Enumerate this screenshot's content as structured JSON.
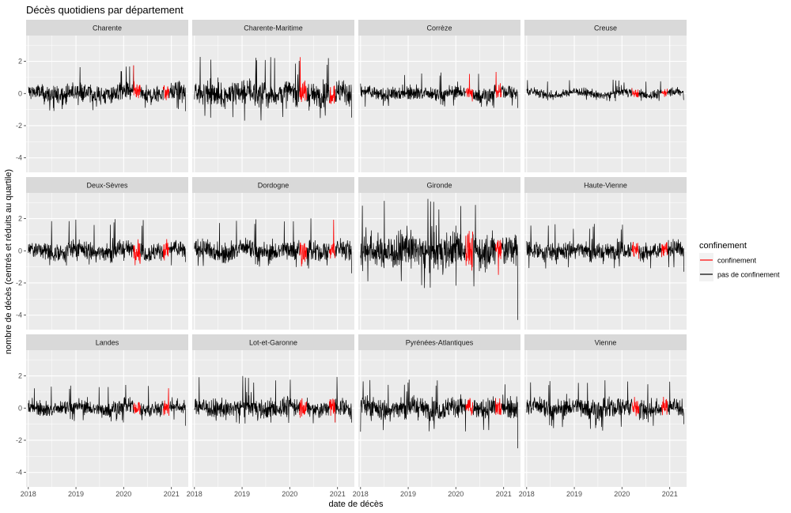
{
  "chart_data": {
    "type": "line",
    "title": "Décès quotidiens par département",
    "xlabel": "date de décès",
    "ylabel": "nombre de décès (centrés et réduits au quartile)",
    "x_ticks": [
      "2018",
      "2019",
      "2020",
      "2021"
    ],
    "x_range": [
      "2017-12-15",
      "2021-05-10"
    ],
    "y_ticks": [
      2,
      0,
      -2,
      -4
    ],
    "y_range": [
      -4.9,
      3.6
    ],
    "grid": true,
    "legend": {
      "title": "confinement",
      "placement": "right",
      "entries": [
        {
          "label": "confinement",
          "color": "#ff0000"
        },
        {
          "label": "pas de confinement",
          "color": "#000000"
        }
      ]
    },
    "lockdown_periods": [
      [
        "2020-03-17",
        "2020-05-11"
      ],
      [
        "2020-10-30",
        "2020-12-15"
      ]
    ],
    "data_start": "2018-01-01",
    "data_end": "2021-04-20",
    "panels": [
      {
        "name": "Charente",
        "spread_min": -1.1,
        "spread_max": 1.8,
        "end_value": -1.1
      },
      {
        "name": "Charente-Maritime",
        "spread_min": -1.7,
        "spread_max": 2.3,
        "end_value": -1.5
      },
      {
        "name": "Corrèze",
        "spread_min": -0.9,
        "spread_max": 1.4,
        "end_value": -0.9
      },
      {
        "name": "Creuse",
        "spread_min": -0.5,
        "spread_max": 0.9,
        "end_value": -0.4
      },
      {
        "name": "Deux-Sèvres",
        "spread_min": -1.0,
        "spread_max": 2.0,
        "end_value": -0.7
      },
      {
        "name": "Dordogne",
        "spread_min": -1.1,
        "spread_max": 2.1,
        "end_value": -1.4
      },
      {
        "name": "Gironde",
        "spread_min": -2.4,
        "spread_max": 3.4,
        "end_value": -4.3
      },
      {
        "name": "Haute-Vienne",
        "spread_min": -1.2,
        "spread_max": 1.7,
        "end_value": -1.3
      },
      {
        "name": "Landes",
        "spread_min": -0.9,
        "spread_max": 1.5,
        "end_value": -1.1
      },
      {
        "name": "Lot-et-Garonne",
        "spread_min": -1.0,
        "spread_max": 2.1,
        "end_value": -0.9
      },
      {
        "name": "Pyrénées-Atlantiques",
        "spread_min": -1.6,
        "spread_max": 1.8,
        "end_value": -2.5
      },
      {
        "name": "Vienne",
        "spread_min": -1.4,
        "spread_max": 1.8,
        "end_value": -1.0
      }
    ]
  }
}
